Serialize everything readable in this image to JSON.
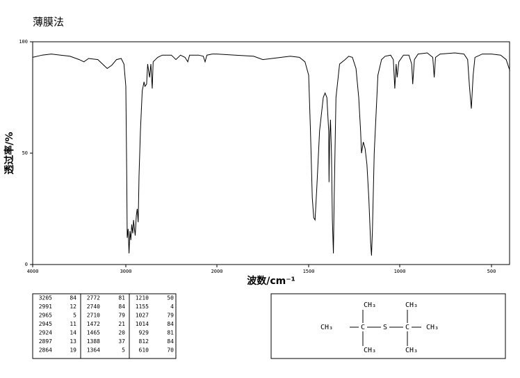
{
  "chart_data": {
    "type": "line",
    "title": "薄膜法",
    "x_label": "波数/cm⁻¹",
    "y_label": "透过率/%",
    "color": "#000000",
    "x": [
      4000,
      3900,
      3800,
      3700,
      3600,
      3500,
      3450,
      3400,
      3300,
      3250,
      3200,
      3150,
      3100,
      3050,
      3020,
      3000,
      2990,
      2985,
      2975,
      2965,
      2955,
      2945,
      2935,
      2924,
      2915,
      2905,
      2897,
      2885,
      2875,
      2864,
      2855,
      2840,
      2820,
      2800,
      2790,
      2772,
      2760,
      2740,
      2725,
      2710,
      2700,
      2650,
      2600,
      2500,
      2450,
      2400,
      2350,
      2320,
      2300,
      2200,
      2150,
      2130,
      2110,
      2050,
      2000,
      1900,
      1800,
      1750,
      1700,
      1650,
      1600,
      1550,
      1520,
      1500,
      1490,
      1480,
      1472,
      1465,
      1455,
      1440,
      1420,
      1410,
      1400,
      1390,
      1388,
      1385,
      1380,
      1375,
      1370,
      1364,
      1360,
      1350,
      1330,
      1300,
      1280,
      1260,
      1240,
      1225,
      1215,
      1210,
      1200,
      1190,
      1180,
      1170,
      1160,
      1155,
      1150,
      1140,
      1120,
      1100,
      1080,
      1050,
      1035,
      1027,
      1020,
      1014,
      1005,
      980,
      950,
      935,
      929,
      920,
      900,
      850,
      820,
      812,
      805,
      780,
      700,
      650,
      630,
      620,
      610,
      600,
      590,
      550,
      500,
      450,
      420,
      400
    ],
    "values": [
      93,
      94,
      94.5,
      94,
      93.5,
      92,
      91,
      92.5,
      92,
      90,
      88,
      89.5,
      92,
      92.5,
      90,
      80,
      40,
      12,
      16,
      5,
      15,
      11,
      18,
      14,
      20,
      16,
      13,
      22,
      25,
      19,
      40,
      60,
      78,
      82,
      80,
      81,
      90,
      84,
      90,
      79,
      91,
      93,
      94,
      94,
      92,
      94,
      93,
      91,
      94,
      94,
      93.5,
      91,
      94,
      94.5,
      94.5,
      94,
      93.5,
      92,
      92.5,
      93,
      93.5,
      93,
      91,
      85,
      60,
      30,
      21,
      20,
      35,
      60,
      75,
      77,
      75,
      60,
      37,
      55,
      65,
      50,
      20,
      5,
      30,
      75,
      90,
      92,
      93.5,
      93,
      88,
      75,
      60,
      50,
      55,
      52,
      45,
      30,
      10,
      4,
      15,
      50,
      85,
      92,
      93.5,
      94,
      92,
      79,
      90,
      84,
      91,
      94,
      94,
      90,
      81,
      92,
      94.5,
      95,
      93,
      84,
      93,
      94.5,
      95,
      94.5,
      92,
      80,
      70,
      85,
      93,
      94.5,
      94.5,
      94,
      92,
      87
    ],
    "xlim": [
      4000,
      400
    ],
    "ylim": [
      0,
      100
    ],
    "xticks": [
      4000,
      3000,
      2000,
      1500,
      1000,
      500
    ],
    "yticks": [
      0,
      50,
      100
    ]
  },
  "peak_table": {
    "rows": [
      [
        3205,
        84,
        2772,
        81,
        1210,
        50
      ],
      [
        2991,
        12,
        2740,
        84,
        1155,
        4
      ],
      [
        2965,
        5,
        2710,
        79,
        1027,
        79
      ],
      [
        2945,
        11,
        1472,
        21,
        1014,
        84
      ],
      [
        2924,
        14,
        1465,
        20,
        929,
        81
      ],
      [
        2897,
        13,
        1388,
        37,
        812,
        84
      ],
      [
        2864,
        19,
        1364,
        5,
        610,
        70
      ]
    ]
  },
  "structure": {
    "labels": [
      "CH₃",
      "CH₃",
      "CH₃",
      "C",
      "S",
      "C",
      "CH₃",
      "CH₃",
      "CH₃"
    ]
  }
}
